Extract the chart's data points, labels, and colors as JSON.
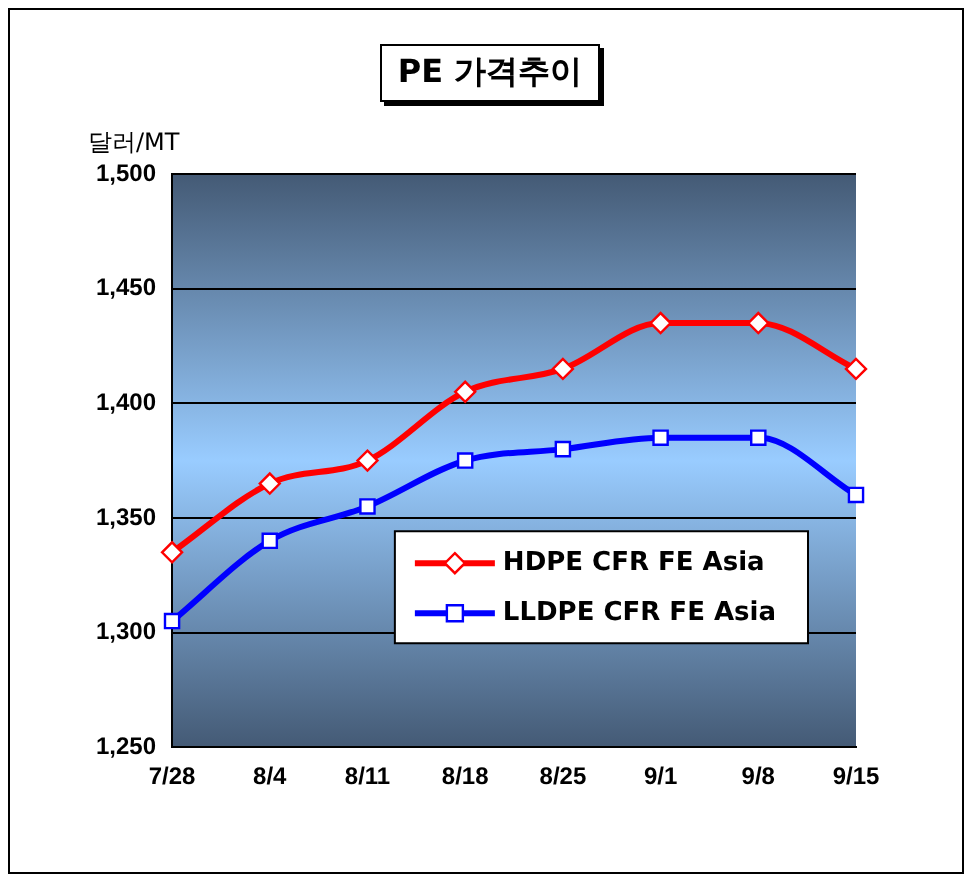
{
  "chart_data": {
    "type": "line",
    "title": "PE 가격추이",
    "ylabel": "달러/MT",
    "categories": [
      "7/28",
      "8/4",
      "8/11",
      "8/18",
      "8/25",
      "9/1",
      "9/8",
      "9/15"
    ],
    "series": [
      {
        "name": "HDPE CFR FE Asia",
        "color": "#ff0000",
        "marker": "diamond",
        "values": [
          1335,
          1365,
          1375,
          1405,
          1415,
          1435,
          1435,
          1415
        ]
      },
      {
        "name": "LLDPE CFR FE Asia",
        "color": "#0000ff",
        "marker": "square",
        "values": [
          1305,
          1340,
          1355,
          1375,
          1380,
          1385,
          1385,
          1360
        ]
      }
    ],
    "ylim": [
      1250,
      1500
    ],
    "yticks": [
      {
        "value": 1250,
        "label": "1,250"
      },
      {
        "value": 1300,
        "label": "1,300"
      },
      {
        "value": 1350,
        "label": "1,350"
      },
      {
        "value": 1400,
        "label": "1,400"
      },
      {
        "value": 1450,
        "label": "1,450"
      },
      {
        "value": 1500,
        "label": "1,500"
      }
    ],
    "grid": "y",
    "legend": "bottom right",
    "line_style": "solid"
  }
}
